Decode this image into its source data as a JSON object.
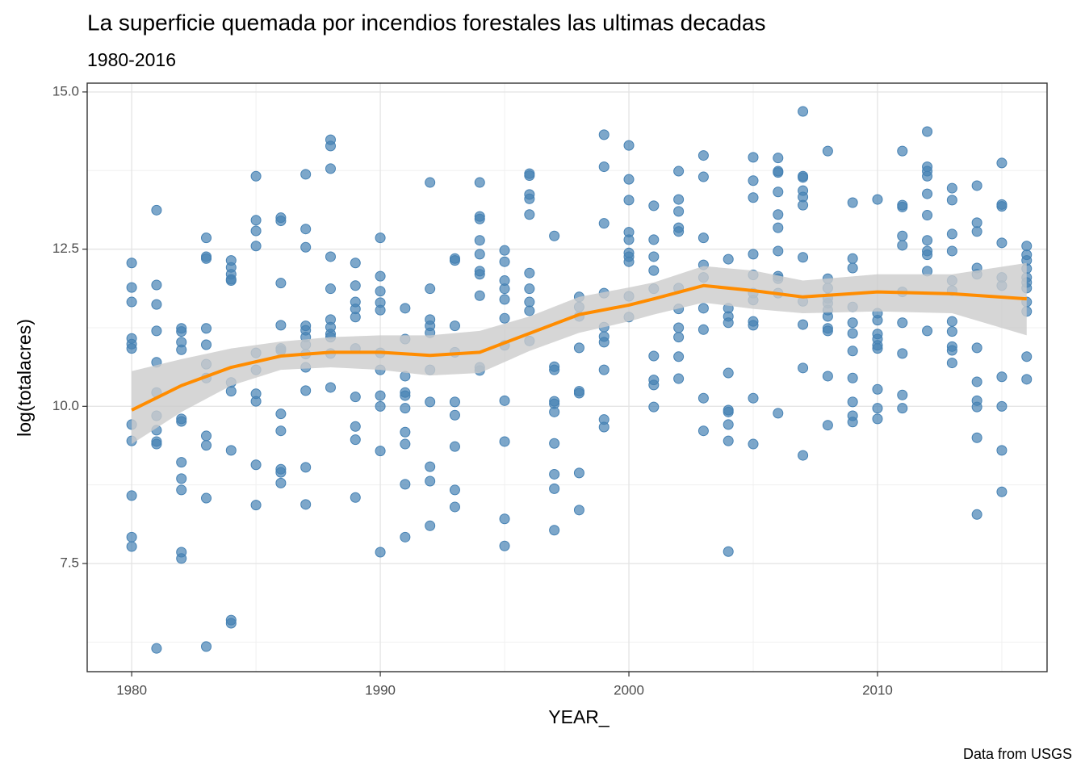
{
  "chart_data": {
    "type": "scatter",
    "title": "La superficie quemada por incendios forestales las ultimas decadas",
    "subtitle": "1980-2016",
    "caption": "Data from USGS",
    "x_label": "YEAR_",
    "y_label": "log(totalacres)",
    "xlim": [
      1978.21,
      2016.82
    ],
    "ylim": [
      5.78,
      15.14
    ],
    "xticks": [
      1980,
      1990,
      2000,
      2010
    ],
    "yticks": [
      7.5,
      {
        "value": 10,
        "label": "10.0"
      },
      12.5,
      {
        "value": 15,
        "label": "15.0"
      }
    ],
    "grid": true,
    "points": {
      "color": "#4682b4",
      "x": [
        1980,
        1981,
        1982,
        1983,
        1984,
        1985,
        1986,
        1987,
        1988,
        1989,
        1990,
        1991,
        1992,
        1993,
        1994,
        1995,
        1996,
        1997,
        1998,
        1999,
        2000,
        2001,
        2002,
        2003,
        2004,
        2005,
        2006,
        2007,
        2008,
        2009,
        2010,
        2011,
        2012,
        2013,
        2014,
        2015,
        2016
      ],
      "values": [
        [
          12.28,
          11.89,
          11.66,
          11.08,
          10.99,
          10.92,
          9.71,
          9.45,
          8.58,
          7.92,
          7.77
        ],
        [
          13.12,
          11.93,
          11.62,
          11.2,
          10.7,
          10.22,
          9.85,
          9.62,
          9.44,
          9.4,
          6.15
        ],
        [
          11.24,
          11.19,
          11.02,
          10.9,
          9.8,
          9.76,
          9.11,
          8.85,
          8.67,
          7.68,
          7.58
        ],
        [
          12.68,
          12.38,
          12.35,
          11.24,
          10.98,
          10.67,
          10.45,
          9.53,
          9.38,
          8.54,
          6.18
        ],
        [
          12.32,
          12.21,
          12.1,
          12.02,
          12.0,
          10.38,
          10.24,
          9.3,
          6.6,
          6.55
        ],
        [
          13.66,
          12.96,
          12.79,
          12.55,
          10.85,
          10.58,
          10.2,
          10.08,
          9.07,
          8.43
        ],
        [
          13.0,
          12.95,
          11.96,
          11.29,
          10.92,
          10.89,
          9.88,
          9.61,
          9.0,
          8.95,
          8.78
        ],
        [
          13.69,
          12.82,
          12.53,
          11.28,
          11.21,
          11.1,
          10.98,
          10.83,
          10.62,
          10.25,
          9.03,
          8.44
        ],
        [
          14.24,
          14.14,
          13.78,
          12.38,
          11.87,
          11.38,
          11.26,
          11.15,
          11.1,
          10.84,
          10.3
        ],
        [
          12.28,
          11.92,
          11.66,
          11.55,
          11.42,
          10.92,
          10.15,
          9.68,
          9.47,
          8.55
        ],
        [
          12.68,
          12.07,
          11.83,
          11.65,
          11.53,
          10.85,
          10.58,
          10.17,
          10.0,
          9.29,
          7.68
        ],
        [
          11.56,
          11.07,
          10.48,
          10.22,
          10.17,
          9.97,
          9.59,
          9.4,
          8.76,
          7.92
        ],
        [
          13.56,
          11.87,
          11.38,
          11.28,
          11.17,
          10.58,
          10.07,
          9.04,
          8.81,
          8.1
        ],
        [
          12.35,
          12.32,
          11.28,
          10.86,
          10.07,
          9.86,
          9.36,
          8.67,
          8.4
        ],
        [
          13.56,
          13.02,
          12.98,
          12.64,
          12.42,
          12.15,
          12.1,
          11.76,
          10.62,
          10.57
        ],
        [
          12.48,
          12.3,
          12.0,
          11.87,
          11.7,
          11.4,
          10.97,
          10.09,
          9.44,
          8.21,
          7.78
        ],
        [
          13.7,
          13.67,
          13.37,
          13.3,
          13.05,
          12.12,
          11.87,
          11.66,
          11.52,
          11.04
        ],
        [
          12.71,
          10.63,
          10.58,
          10.08,
          10.04,
          9.91,
          9.41,
          8.92,
          8.69,
          8.03
        ],
        [
          11.74,
          11.58,
          11.43,
          10.93,
          10.24,
          10.21,
          8.94,
          8.35
        ],
        [
          14.32,
          13.81,
          12.91,
          11.8,
          11.26,
          11.11,
          11.02,
          10.58,
          9.79,
          9.67
        ],
        [
          14.15,
          13.61,
          13.28,
          12.77,
          12.65,
          12.44,
          12.38,
          12.3,
          11.75,
          11.42
        ],
        [
          13.19,
          12.65,
          12.38,
          12.16,
          11.87,
          10.8,
          10.42,
          10.34,
          9.99
        ],
        [
          13.74,
          13.29,
          13.1,
          12.84,
          12.78,
          11.88,
          11.55,
          11.25,
          11.1,
          10.79,
          10.44
        ],
        [
          13.99,
          13.65,
          12.68,
          12.25,
          12.05,
          11.56,
          11.22,
          10.13,
          9.61
        ],
        [
          12.34,
          11.56,
          11.43,
          11.33,
          10.53,
          9.94,
          9.91,
          9.71,
          9.45,
          7.69
        ],
        [
          13.96,
          13.59,
          13.32,
          12.42,
          12.09,
          11.8,
          11.69,
          11.35,
          11.29,
          10.13,
          9.4
        ],
        [
          13.95,
          13.74,
          13.72,
          13.41,
          13.05,
          12.84,
          12.47,
          12.07,
          12.03,
          11.8,
          9.89
        ],
        [
          14.69,
          13.66,
          13.64,
          13.43,
          13.33,
          13.2,
          12.37,
          11.67,
          11.3,
          10.61,
          9.22
        ],
        [
          14.06,
          12.03,
          11.88,
          11.72,
          11.64,
          11.53,
          11.43,
          11.24,
          11.2,
          10.48,
          9.7
        ],
        [
          13.24,
          12.35,
          12.2,
          11.58,
          11.33,
          11.16,
          10.88,
          10.45,
          10.07,
          9.85,
          9.75
        ],
        [
          13.29,
          11.48,
          11.37,
          11.15,
          11.07,
          10.97,
          10.92,
          10.27,
          9.97,
          9.8
        ],
        [
          14.06,
          13.2,
          13.17,
          12.71,
          12.56,
          11.82,
          11.33,
          10.84,
          10.18,
          9.97
        ],
        [
          14.37,
          13.81,
          13.74,
          13.66,
          13.38,
          13.04,
          12.64,
          12.47,
          12.41,
          12.15,
          11.2
        ],
        [
          13.47,
          13.28,
          12.74,
          12.47,
          12.0,
          11.84,
          11.35,
          11.19,
          10.95,
          10.89,
          10.69
        ],
        [
          13.51,
          12.92,
          12.78,
          12.2,
          12.1,
          10.93,
          10.39,
          10.09,
          9.99,
          9.5,
          8.28
        ],
        [
          13.87,
          13.21,
          13.18,
          12.6,
          12.05,
          11.92,
          10.47,
          10.0,
          9.3,
          8.64
        ],
        [
          12.55,
          12.41,
          12.32,
          12.19,
          12.05,
          11.97,
          11.88,
          11.66,
          11.51,
          10.79,
          10.43
        ]
      ]
    },
    "smooth": {
      "color": "#ff8c00",
      "band_color": "#cccccc",
      "x": [
        1980,
        1982,
        1984,
        1986,
        1988,
        1990,
        1992,
        1994,
        1996,
        1998,
        2000,
        2001,
        2003,
        2005,
        2007,
        2010,
        2013,
        2016
      ],
      "values": [
        9.94,
        10.33,
        10.62,
        10.8,
        10.86,
        10.86,
        10.81,
        10.86,
        11.16,
        11.46,
        11.61,
        11.71,
        11.92,
        11.84,
        11.74,
        11.82,
        11.79,
        11.71
      ],
      "lower": [
        9.4,
        9.91,
        10.33,
        10.58,
        10.62,
        10.58,
        10.49,
        10.53,
        10.88,
        11.17,
        11.35,
        11.46,
        11.65,
        11.55,
        11.48,
        11.51,
        11.48,
        11.13
      ],
      "upper": [
        10.56,
        10.75,
        10.92,
        11.03,
        11.1,
        11.13,
        11.13,
        11.2,
        11.43,
        11.74,
        11.89,
        11.97,
        12.23,
        12.16,
        12.0,
        12.1,
        12.1,
        12.28
      ]
    }
  }
}
